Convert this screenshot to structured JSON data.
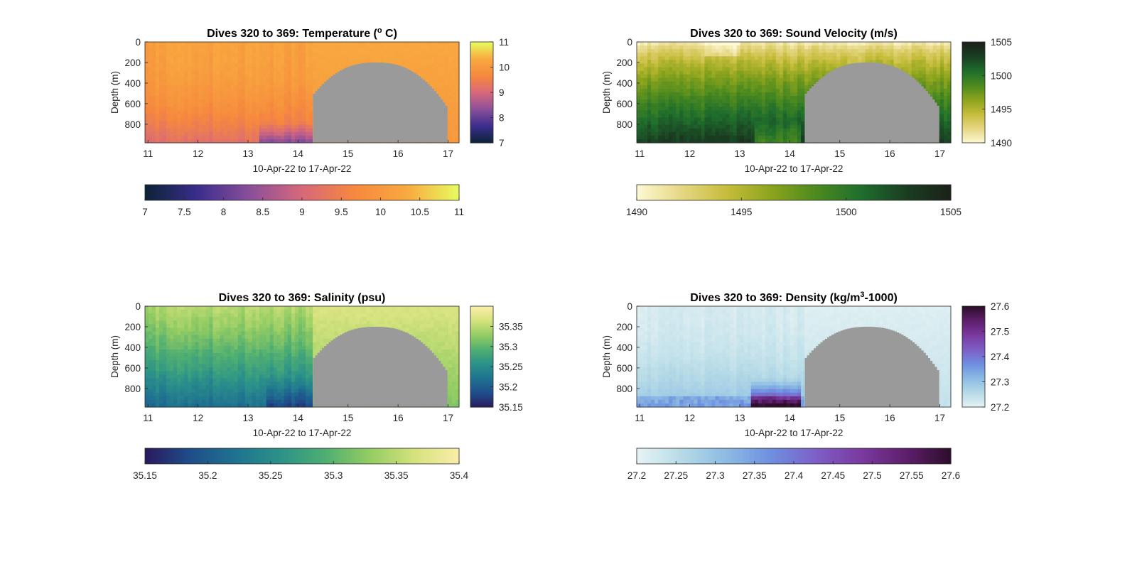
{
  "figure": {
    "background": "#ffffff",
    "mask_color": "#9a9a9a"
  },
  "chart_data": [
    {
      "type": "heatmap",
      "title": "Dives 320 to 369: Temperature (",
      "title_sup": "o",
      "title_tail": " C)",
      "variable": "temperature",
      "xlabel": "10-Apr-22 to 17-Apr-22",
      "ylabel": "Depth (m)",
      "xlim": [
        10.94,
        17.22
      ],
      "ylim": [
        0,
        980
      ],
      "y_reversed": true,
      "xticks": [
        11,
        12,
        13,
        14,
        15,
        16,
        17
      ],
      "xtick_labels": [
        "11",
        "12",
        "13",
        "14",
        "15",
        "16",
        "17"
      ],
      "yticks": [
        0,
        200,
        400,
        600,
        800
      ],
      "ytick_labels": [
        "0",
        "200",
        "400",
        "600",
        "800"
      ],
      "clim": [
        7,
        11
      ],
      "colormap": [
        "#0c2335",
        "#3a2d8c",
        "#8a4f9a",
        "#d7687b",
        "#f6883e",
        "#f8a93f",
        "#e8fc5f"
      ],
      "vertical_colorbar_ticks": [
        7,
        8,
        9,
        10,
        11
      ],
      "vertical_colorbar_labels": [
        "7",
        "8",
        "9",
        "10",
        "11"
      ],
      "horizontal_colorbar_ticks": [
        7,
        7.5,
        8,
        8.5,
        9,
        9.5,
        10,
        10.5,
        11
      ],
      "horizontal_colorbar_labels": [
        "7",
        "7.5",
        "8",
        "8.5",
        "9",
        "9.5",
        "10",
        "10.5",
        "11"
      ],
      "grid": false
    },
    {
      "type": "heatmap",
      "title": "Dives 320 to 369: Sound Velocity (m/s)",
      "variable": "sound_velocity",
      "xlabel": "10-Apr-22 to 17-Apr-22",
      "ylabel": "Depth (m)",
      "xlim": [
        10.94,
        17.22
      ],
      "ylim": [
        0,
        980
      ],
      "y_reversed": true,
      "xticks": [
        11,
        12,
        13,
        14,
        15,
        16,
        17
      ],
      "xtick_labels": [
        "11",
        "12",
        "13",
        "14",
        "15",
        "16",
        "17"
      ],
      "yticks": [
        0,
        200,
        400,
        600,
        800
      ],
      "ytick_labels": [
        "0",
        "200",
        "400",
        "600",
        "800"
      ],
      "clim": [
        1490,
        1505
      ],
      "colormap": [
        "#fdf9d4",
        "#e6d784",
        "#c6bd3b",
        "#8ca41d",
        "#4c8a1f",
        "#1f6e2c",
        "#1a3e22",
        "#1b2119"
      ],
      "vertical_colorbar_ticks": [
        1490,
        1495,
        1500,
        1505
      ],
      "vertical_colorbar_labels": [
        "1490",
        "1495",
        "1500",
        "1505"
      ],
      "horizontal_colorbar_ticks": [
        1490,
        1495,
        1500,
        1505
      ],
      "horizontal_colorbar_labels": [
        "1490",
        "1495",
        "1500",
        "1505"
      ],
      "grid": false
    },
    {
      "type": "heatmap",
      "title": "Dives 320 to 369: Salinity (psu)",
      "variable": "salinity",
      "xlabel": "10-Apr-22 to 17-Apr-22",
      "ylabel": "Depth (m)",
      "xlim": [
        10.94,
        17.22
      ],
      "ylim": [
        0,
        980
      ],
      "y_reversed": true,
      "xticks": [
        11,
        12,
        13,
        14,
        15,
        16,
        17
      ],
      "xtick_labels": [
        "11",
        "12",
        "13",
        "14",
        "15",
        "16",
        "17"
      ],
      "yticks": [
        0,
        200,
        400,
        600,
        800
      ],
      "ytick_labels": [
        "0",
        "200",
        "400",
        "600",
        "800"
      ],
      "clim": [
        35.15,
        35.4
      ],
      "colormap": [
        "#2a1a5e",
        "#1f4d8a",
        "#1f7290",
        "#2b9189",
        "#4eae72",
        "#93cc63",
        "#d4e27d",
        "#fbeeaa"
      ],
      "vertical_colorbar_ticks": [
        35.15,
        35.2,
        35.25,
        35.3,
        35.35
      ],
      "vertical_colorbar_labels": [
        "35.15",
        "35.2",
        "35.25",
        "35.3",
        "35.35"
      ],
      "horizontal_colorbar_ticks": [
        35.15,
        35.2,
        35.25,
        35.3,
        35.35,
        35.4
      ],
      "horizontal_colorbar_labels": [
        "35.15",
        "35.2",
        "35.25",
        "35.3",
        "35.35",
        "35.4"
      ],
      "grid": false
    },
    {
      "type": "heatmap",
      "title": "Dives 320 to 369: Density (kg/m",
      "title_sup": "3",
      "title_tail": "-1000)",
      "variable": "density",
      "xlabel": "10-Apr-22 to 17-Apr-22",
      "ylabel": "Depth (m)",
      "xlim": [
        10.94,
        17.22
      ],
      "ylim": [
        0,
        980
      ],
      "y_reversed": true,
      "xticks": [
        11,
        12,
        13,
        14,
        15,
        16,
        17
      ],
      "xtick_labels": [
        "11",
        "12",
        "13",
        "14",
        "15",
        "16",
        "17"
      ],
      "yticks": [
        0,
        200,
        400,
        600,
        800
      ],
      "ytick_labels": [
        "0",
        "200",
        "400",
        "600",
        "800"
      ],
      "clim": [
        27.2,
        27.6
      ],
      "colormap": [
        "#e7f3f4",
        "#b6dbe7",
        "#8cbbe3",
        "#6e8fe0",
        "#7d5fc7",
        "#7a3a9f",
        "#5e1f6d",
        "#2d0e2a"
      ],
      "vertical_colorbar_ticks": [
        27.2,
        27.3,
        27.4,
        27.5,
        27.6
      ],
      "vertical_colorbar_labels": [
        "27.2",
        "27.3",
        "27.4",
        "27.5",
        "27.6"
      ],
      "horizontal_colorbar_ticks": [
        27.2,
        27.25,
        27.3,
        27.35,
        27.4,
        27.45,
        27.5,
        27.55,
        27.6
      ],
      "horizontal_colorbar_labels": [
        "27.2",
        "27.25",
        "27.3",
        "27.35",
        "27.4",
        "27.45",
        "27.5",
        "27.55",
        "27.6"
      ],
      "grid": false
    }
  ]
}
